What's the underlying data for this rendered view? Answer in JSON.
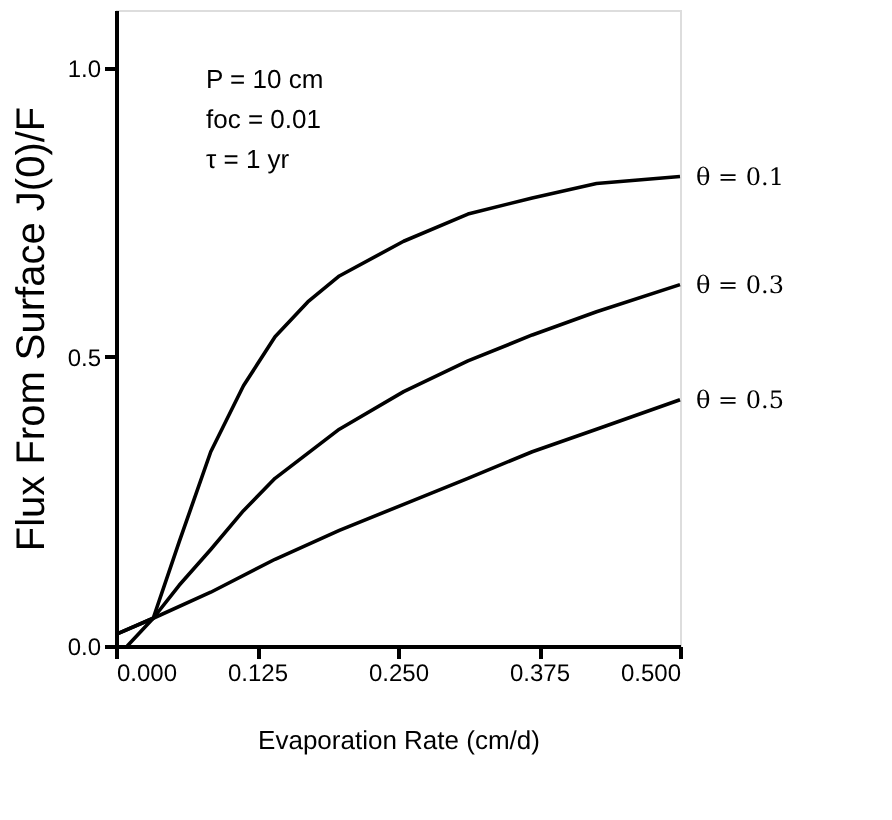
{
  "chart_data": {
    "type": "line",
    "xlabel": "Evaporation Rate (cm/d)",
    "ylabel": "Flux From Surface J(0)/F",
    "xlim": [
      0,
      0.5
    ],
    "ylim": [
      0,
      1.1
    ],
    "xticks": [
      {
        "value": 0,
        "label": "0.000"
      },
      {
        "value": 0.125,
        "label": "0.125"
      },
      {
        "value": 0.25,
        "label": "0.250"
      },
      {
        "value": 0.375,
        "label": "0.375"
      },
      {
        "value": 0.5,
        "label": "0.500"
      }
    ],
    "yticks": [
      {
        "value": 0,
        "label": "0.0"
      },
      {
        "value": 0.5,
        "label": "0.5"
      },
      {
        "value": 1,
        "label": "1.0"
      }
    ],
    "grid": false,
    "legend": false,
    "marker": "none",
    "line_style": "solid",
    "annotations": [
      "P = 10 cm",
      "foc = 0.01",
      "τ   = 1 yr"
    ],
    "series": [
      {
        "name": "θ = 0.1",
        "color": "#000000",
        "x": [
          0.01,
          0.033,
          0.056,
          0.084,
          0.113,
          0.141,
          0.17,
          0.198,
          0.255,
          0.312,
          0.369,
          0.426,
          0.5
        ],
        "values": [
          0.0,
          0.048,
          0.18,
          0.336,
          0.45,
          0.535,
          0.595,
          0.64,
          0.7,
          0.747,
          0.775,
          0.8,
          0.812
        ]
      },
      {
        "name": "θ = 0.3",
        "color": "#000000",
        "x": [
          0.0,
          0.033,
          0.056,
          0.084,
          0.113,
          0.141,
          0.198,
          0.255,
          0.312,
          0.369,
          0.426,
          0.5
        ],
        "values": [
          0.02,
          0.048,
          0.105,
          0.167,
          0.234,
          0.29,
          0.375,
          0.44,
          0.493,
          0.538,
          0.578,
          0.625
        ]
      },
      {
        "name": "θ = 0.5",
        "color": "#000000",
        "x": [
          0.0,
          0.033,
          0.084,
          0.141,
          0.198,
          0.255,
          0.312,
          0.369,
          0.426,
          0.5
        ],
        "values": [
          0.02,
          0.048,
          0.093,
          0.15,
          0.2,
          0.245,
          0.29,
          0.336,
          0.375,
          0.426
        ]
      }
    ]
  }
}
